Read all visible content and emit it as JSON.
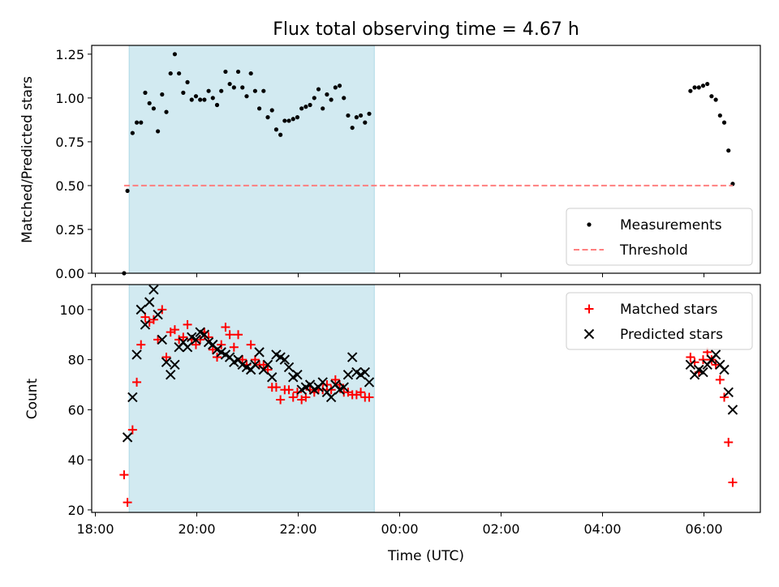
{
  "chart_data": [
    {
      "type": "scatter",
      "title": "Flux total observing time = 4.67 h",
      "xlabel": "",
      "ylabel": "Matched/Predicted stars",
      "ylim": [
        0,
        1.3
      ],
      "yticks": [
        "0.00",
        "0.25",
        "0.50",
        "0.75",
        "1.00",
        "1.25"
      ],
      "highlight_span": {
        "x0": "18:40",
        "x1": "23:30",
        "color": "#add8e6"
      },
      "legend": {
        "position": "lower-right"
      },
      "series": [
        {
          "name": "Measurements",
          "marker": "dot",
          "color": "#000000",
          "x": [
            "18:34",
            "18:38",
            "18:44",
            "18:49",
            "18:54",
            "18:59",
            "19:04",
            "19:09",
            "19:14",
            "19:19",
            "19:24",
            "19:29",
            "19:34",
            "19:39",
            "19:44",
            "19:49",
            "19:54",
            "19:59",
            "20:04",
            "20:09",
            "20:14",
            "20:19",
            "20:24",
            "20:29",
            "20:34",
            "20:39",
            "20:44",
            "20:49",
            "20:54",
            "20:59",
            "21:04",
            "21:09",
            "21:14",
            "21:19",
            "21:24",
            "21:29",
            "21:34",
            "21:39",
            "21:44",
            "21:49",
            "21:54",
            "21:59",
            "22:04",
            "22:09",
            "22:14",
            "22:19",
            "22:24",
            "22:29",
            "22:34",
            "22:39",
            "22:44",
            "22:49",
            "22:54",
            "22:59",
            "23:04",
            "23:09",
            "23:14",
            "23:19",
            "23:24",
            "05:44",
            "05:49",
            "05:54",
            "05:59",
            "06:04",
            "06:09",
            "06:14",
            "06:19",
            "06:24",
            "06:29",
            "06:34"
          ],
          "y": [
            0.0,
            0.47,
            0.8,
            0.86,
            0.86,
            1.03,
            0.97,
            0.94,
            0.81,
            1.02,
            0.92,
            1.14,
            1.25,
            1.14,
            1.03,
            1.09,
            0.99,
            1.01,
            0.99,
            0.99,
            1.04,
            1.0,
            0.96,
            1.04,
            1.15,
            1.08,
            1.06,
            1.15,
            1.06,
            1.01,
            1.14,
            1.04,
            0.94,
            1.04,
            0.89,
            0.93,
            0.82,
            0.79,
            0.87,
            0.87,
            0.88,
            0.89,
            0.94,
            0.95,
            0.96,
            1.0,
            1.05,
            0.94,
            1.02,
            0.99,
            1.06,
            1.07,
            1.0,
            0.9,
            0.83,
            0.89,
            0.9,
            0.86,
            0.91,
            1.04,
            1.06,
            1.06,
            1.07,
            1.08,
            1.01,
            0.99,
            0.9,
            0.86,
            0.7,
            0.51
          ]
        },
        {
          "name": "Threshold",
          "style": "dashed",
          "color": "#ff7f7f",
          "x": [
            "18:34",
            "06:34"
          ],
          "y": [
            0.5,
            0.5
          ]
        }
      ]
    },
    {
      "type": "scatter",
      "xlabel": "Time (UTC)",
      "ylabel": "Count",
      "ylim": [
        19,
        110
      ],
      "yticks": [
        "20",
        "40",
        "60",
        "80",
        "100"
      ],
      "xticks": [
        "18:00",
        "20:00",
        "22:00",
        "00:00",
        "02:00",
        "04:00",
        "06:00"
      ],
      "highlight_span": {
        "x0": "18:40",
        "x1": "23:30",
        "color": "#add8e6"
      },
      "legend": {
        "position": "top-right"
      },
      "series": [
        {
          "name": "Matched stars",
          "marker": "plus",
          "color": "#ff0000",
          "x": [
            "18:34",
            "18:38",
            "18:44",
            "18:49",
            "18:54",
            "18:59",
            "19:04",
            "19:09",
            "19:14",
            "19:19",
            "19:24",
            "19:29",
            "19:34",
            "19:39",
            "19:44",
            "19:49",
            "19:54",
            "19:59",
            "20:04",
            "20:09",
            "20:14",
            "20:19",
            "20:24",
            "20:29",
            "20:34",
            "20:39",
            "20:44",
            "20:49",
            "20:54",
            "20:59",
            "21:04",
            "21:09",
            "21:14",
            "21:19",
            "21:24",
            "21:29",
            "21:34",
            "21:39",
            "21:44",
            "21:49",
            "21:54",
            "21:59",
            "22:04",
            "22:09",
            "22:14",
            "22:19",
            "22:24",
            "22:29",
            "22:34",
            "22:39",
            "22:44",
            "22:49",
            "22:54",
            "22:59",
            "23:04",
            "23:09",
            "23:14",
            "23:19",
            "23:24",
            "05:44",
            "05:49",
            "05:54",
            "05:59",
            "06:04",
            "06:09",
            "06:14",
            "06:19",
            "06:24",
            "06:29",
            "06:34"
          ],
          "y": [
            34,
            23,
            52,
            71,
            86,
            97,
            95,
            96,
            88,
            100,
            81,
            91,
            92,
            88,
            89,
            94,
            88,
            86,
            88,
            91,
            89,
            84,
            81,
            86,
            93,
            90,
            85,
            90,
            80,
            78,
            86,
            80,
            78,
            78,
            76,
            69,
            69,
            64,
            68,
            68,
            65,
            67,
            64,
            65,
            68,
            67,
            68,
            68,
            70,
            68,
            72,
            70,
            67,
            67,
            66,
            66,
            67,
            65,
            65,
            81,
            79,
            75,
            80,
            83,
            80,
            78,
            72,
            65,
            47,
            31
          ]
        },
        {
          "name": "Predicted stars",
          "marker": "x",
          "color": "#000000",
          "x": [
            "18:38",
            "18:44",
            "18:49",
            "18:54",
            "18:59",
            "19:04",
            "19:09",
            "19:14",
            "19:19",
            "19:24",
            "19:29",
            "19:34",
            "19:39",
            "19:44",
            "19:49",
            "19:54",
            "19:59",
            "20:04",
            "20:09",
            "20:14",
            "20:19",
            "20:24",
            "20:29",
            "20:34",
            "20:39",
            "20:44",
            "20:49",
            "20:54",
            "20:59",
            "21:04",
            "21:09",
            "21:14",
            "21:19",
            "21:24",
            "21:29",
            "21:34",
            "21:39",
            "21:44",
            "21:49",
            "21:54",
            "21:59",
            "22:04",
            "22:09",
            "22:14",
            "22:19",
            "22:24",
            "22:29",
            "22:34",
            "22:39",
            "22:44",
            "22:49",
            "22:54",
            "22:59",
            "23:04",
            "23:09",
            "23:14",
            "23:19",
            "23:24",
            "05:44",
            "05:49",
            "05:54",
            "05:59",
            "06:04",
            "06:09",
            "06:14",
            "06:19",
            "06:24",
            "06:29",
            "06:34"
          ],
          "y": [
            49,
            65,
            82,
            100,
            94,
            103,
            108,
            98,
            88,
            79,
            74,
            78,
            85,
            87,
            85,
            89,
            88,
            91,
            90,
            87,
            86,
            84,
            83,
            82,
            81,
            79,
            80,
            78,
            77,
            76,
            78,
            83,
            76,
            78,
            73,
            82,
            81,
            80,
            77,
            73,
            74,
            68,
            69,
            70,
            68,
            69,
            71,
            67,
            65,
            70,
            68,
            69,
            74,
            81,
            75,
            74,
            75,
            71,
            78,
            74,
            76,
            75,
            78,
            80,
            82,
            78,
            76,
            67,
            60
          ]
        }
      ]
    }
  ]
}
